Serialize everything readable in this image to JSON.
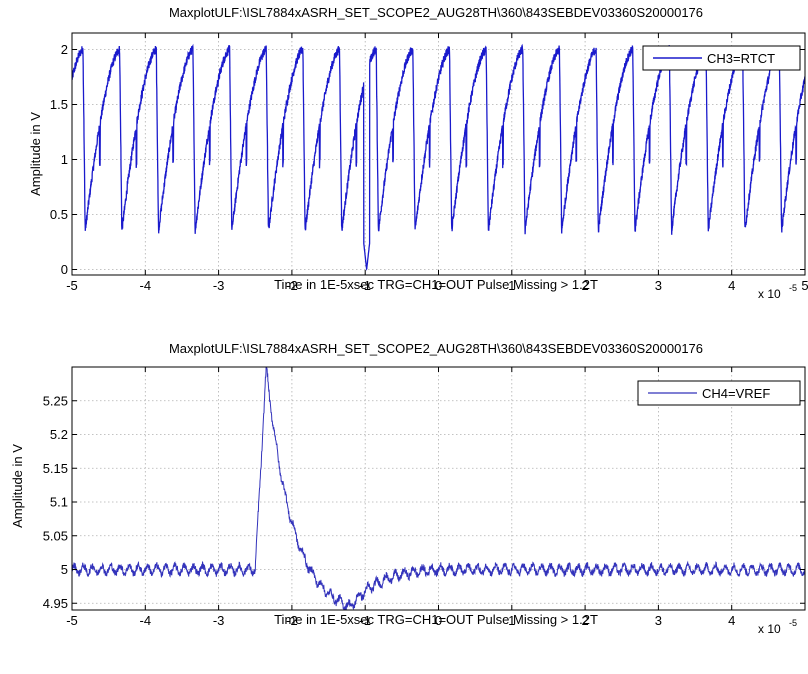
{
  "chart_data": [
    {
      "type": "line",
      "title": "MaxplotULF:\\ISL7884xASRH_SET_SCOPE2_AUG28TH\\360\\843SEBDEV03360S20000176",
      "xlabel": "Time in 1E-5xsec TRG=CH1=OUT Pulse Missing > 1.2T",
      "ylabel": "Amplitude in V",
      "x_multiplier_label": "x 10",
      "x_multiplier_exp": "-5",
      "xlim": [
        -5,
        5
      ],
      "ylim": [
        -0.05,
        2.15
      ],
      "x_ticks": [
        -5,
        -4,
        -3,
        -2,
        -1,
        0,
        1,
        2,
        3,
        4,
        5
      ],
      "x_tick_labels": [
        "-5",
        "-4",
        "-3",
        "-2",
        "-1",
        "0",
        "1",
        "2",
        "3",
        "4",
        "5"
      ],
      "y_ticks": [
        0,
        0.5,
        1,
        1.5,
        2
      ],
      "y_tick_labels": [
        "0",
        "0.5",
        "1",
        "1.5",
        "2"
      ],
      "grid": true,
      "legend_position": "top-right",
      "series": [
        {
          "name": "CH3=RTCT",
          "color": "#1a1acc",
          "waveform": {
            "kind": "sawtooth",
            "period": 0.5,
            "phase": -4.85,
            "min": 0.35,
            "max": 2.0,
            "dip_x": -0.98,
            "dip_min": 0.0
          }
        }
      ]
    },
    {
      "type": "line",
      "title": "MaxplotULF:\\ISL7884xASRH_SET_SCOPE2_AUG28TH\\360\\843SEBDEV03360S20000176",
      "xlabel": "Time in 1E-5xsec TRG=CH1=OUT Pulse Missing > 1.2T",
      "ylabel": "Amplitude in V",
      "x_multiplier_label": "x 10",
      "x_multiplier_exp": "-5",
      "xlim": [
        -5,
        5
      ],
      "ylim": [
        4.94,
        5.3
      ],
      "x_ticks": [
        -5,
        -4,
        -3,
        -2,
        -1,
        0,
        1,
        2,
        3,
        4
      ],
      "x_tick_labels": [
        "-5",
        "-4",
        "-3",
        "-2",
        "-1",
        "0",
        "1",
        "2",
        "3",
        "4"
      ],
      "y_ticks": [
        4.95,
        5,
        5.05,
        5.1,
        5.15,
        5.2,
        5.25
      ],
      "y_tick_labels": [
        "4.95",
        "5",
        "5.05",
        "5.1",
        "5.15",
        "5.2",
        "5.25"
      ],
      "grid": true,
      "legend_position": "top-right",
      "series": [
        {
          "name": "CH4=VREF",
          "color": "#3333bb",
          "waveform": {
            "kind": "transient",
            "baseline": 5.0,
            "step_x": -2.5,
            "peak_x": -2.35,
            "peak": 5.3,
            "trough_x": -1.2,
            "trough": 4.945,
            "recover_x": 0.0
          }
        }
      ]
    }
  ]
}
